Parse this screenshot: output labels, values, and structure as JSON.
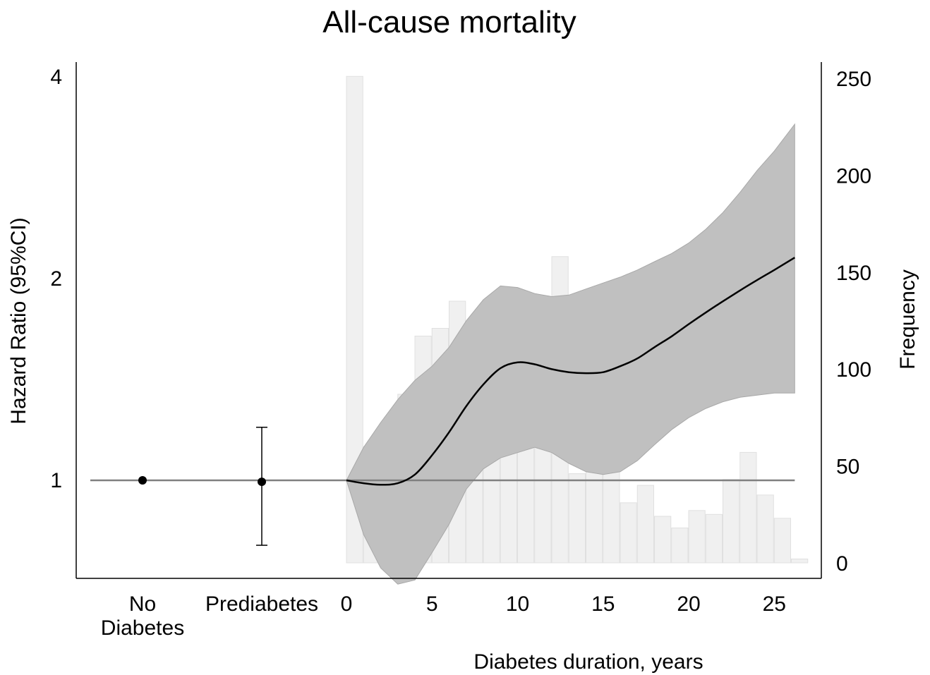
{
  "chart_data": {
    "type": "line",
    "title": "All-cause mortality",
    "xlabel": "Diabetes duration, years",
    "ylabel_left": "Hazard Ratio (95%CI)",
    "ylabel_right": "Frequency",
    "y_left_scale": "log",
    "y_left_ticks": [
      1,
      2,
      4
    ],
    "y_left_ticks_text": [
      "1",
      "2",
      "4"
    ],
    "y_right_ticks": [
      0,
      50,
      100,
      150,
      200,
      250
    ],
    "y_right_ticks_text": [
      "0",
      "50",
      "100",
      "150",
      "200",
      "250"
    ],
    "x_ticks": [
      0,
      5,
      10,
      15,
      20,
      25
    ],
    "x_ticks_text": [
      "0",
      "5",
      "10",
      "15",
      "20",
      "25"
    ],
    "grid": false,
    "categories": [
      {
        "label_line1": "No",
        "label_line2": "Diabetes",
        "hr": 1.0,
        "ci_low": 1.0,
        "ci_high": 1.0
      },
      {
        "label_line1": "Prediabetes",
        "label_line2": "",
        "hr": 0.995,
        "ci_low": 0.8,
        "ci_high": 1.2
      }
    ],
    "reference_hr": 1,
    "hr_curve": {
      "x": [
        0,
        1,
        2,
        3,
        4,
        5,
        6,
        7,
        8,
        9,
        10,
        11,
        12,
        13,
        14,
        15,
        16,
        17,
        18,
        19,
        20,
        21,
        22,
        23,
        24,
        25,
        26.2
      ],
      "hr": [
        1.0,
        0.99,
        0.985,
        0.99,
        1.02,
        1.09,
        1.18,
        1.29,
        1.39,
        1.47,
        1.5,
        1.49,
        1.465,
        1.45,
        1.445,
        1.45,
        1.48,
        1.52,
        1.58,
        1.64,
        1.71,
        1.78,
        1.85,
        1.92,
        1.99,
        2.06,
        2.15
      ],
      "ci_low": [
        1.0,
        0.83,
        0.74,
        0.7,
        0.71,
        0.78,
        0.86,
        0.97,
        1.04,
        1.08,
        1.1,
        1.12,
        1.1,
        1.06,
        1.03,
        1.02,
        1.03,
        1.07,
        1.13,
        1.19,
        1.24,
        1.28,
        1.31,
        1.33,
        1.34,
        1.35,
        1.35
      ],
      "ci_high": [
        1.0,
        1.12,
        1.22,
        1.32,
        1.41,
        1.48,
        1.58,
        1.73,
        1.86,
        1.95,
        1.94,
        1.9,
        1.88,
        1.89,
        1.93,
        1.97,
        2.01,
        2.06,
        2.12,
        2.18,
        2.26,
        2.37,
        2.51,
        2.69,
        2.9,
        3.1,
        3.4
      ]
    },
    "histogram": {
      "bin_start": [
        0,
        1,
        2,
        3,
        4,
        5,
        6,
        7,
        8,
        9,
        10,
        11,
        12,
        13,
        14,
        15,
        16,
        17,
        18,
        19,
        20,
        21,
        22,
        23,
        24,
        25,
        26
      ],
      "counts": [
        251,
        60,
        48,
        87,
        117,
        121,
        135,
        60,
        60,
        64,
        65,
        60,
        158,
        46,
        47,
        47,
        31,
        40,
        24,
        18,
        27,
        25,
        43,
        57,
        35,
        23,
        2
      ]
    },
    "colors": {
      "line": "#000000",
      "ci_band": "#c0c0c0",
      "ci_band_edge": "#a8a8a8",
      "histogram": "#f0f0f0",
      "histogram_edge": "#e0e0e0",
      "reference_line": "#808080",
      "axis": "#000000"
    }
  }
}
